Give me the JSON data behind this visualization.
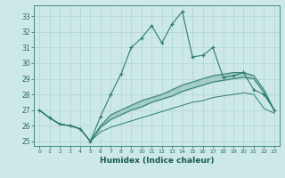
{
  "xlabel": "Humidex (Indice chaleur)",
  "background_color": "#cce8e8",
  "grid_color": "#b0d4d4",
  "line_color": "#2e7d6e",
  "xlim": [
    -0.5,
    23.5
  ],
  "ylim": [
    24.7,
    33.7
  ],
  "yticks": [
    25,
    26,
    27,
    28,
    29,
    30,
    31,
    32,
    33
  ],
  "xticks": [
    0,
    1,
    2,
    3,
    4,
    5,
    6,
    7,
    8,
    9,
    10,
    11,
    12,
    13,
    14,
    15,
    16,
    17,
    18,
    19,
    20,
    21,
    22,
    23
  ],
  "main_line": [
    27.0,
    26.5,
    26.1,
    26.0,
    25.8,
    25.0,
    26.6,
    28.0,
    29.3,
    31.0,
    31.6,
    32.4,
    31.3,
    32.5,
    33.3,
    30.4,
    30.5,
    31.0,
    29.1,
    29.2,
    29.4,
    28.3,
    28.0,
    27.0
  ],
  "line2": [
    27.0,
    26.5,
    26.1,
    26.0,
    25.8,
    25.0,
    26.0,
    26.7,
    27.0,
    27.3,
    27.6,
    27.8,
    28.0,
    28.3,
    28.6,
    28.8,
    29.0,
    29.2,
    29.3,
    29.4,
    29.4,
    29.2,
    28.3,
    27.0
  ],
  "line3": [
    27.0,
    26.5,
    26.1,
    26.0,
    25.8,
    25.0,
    25.9,
    26.4,
    26.7,
    27.0,
    27.2,
    27.5,
    27.7,
    27.9,
    28.2,
    28.4,
    28.6,
    28.8,
    28.9,
    29.0,
    29.1,
    29.0,
    28.1,
    27.0
  ],
  "line4": [
    27.0,
    26.5,
    26.1,
    26.0,
    25.8,
    25.0,
    25.6,
    25.9,
    26.1,
    26.3,
    26.5,
    26.7,
    26.9,
    27.1,
    27.3,
    27.5,
    27.6,
    27.8,
    27.9,
    28.0,
    28.1,
    28.0,
    27.1,
    26.8
  ]
}
